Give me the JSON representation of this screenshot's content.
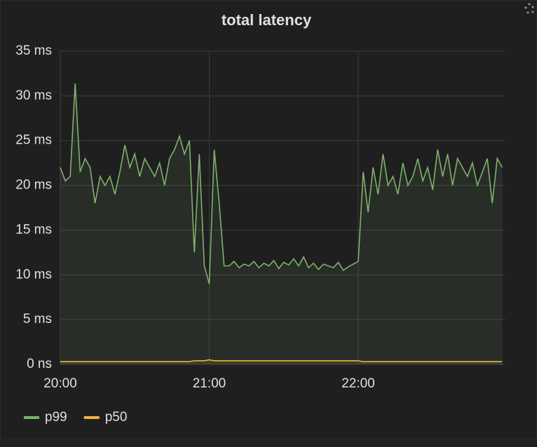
{
  "chart_data": {
    "type": "line",
    "title": "total latency",
    "x": [
      "20:00",
      "20:02",
      "20:04",
      "20:06",
      "20:08",
      "20:10",
      "20:12",
      "20:14",
      "20:16",
      "20:18",
      "20:20",
      "20:22",
      "20:24",
      "20:26",
      "20:28",
      "20:30",
      "20:32",
      "20:34",
      "20:36",
      "20:38",
      "20:40",
      "20:42",
      "20:44",
      "20:46",
      "20:48",
      "20:50",
      "20:52",
      "20:54",
      "20:56",
      "20:58",
      "21:00",
      "21:02",
      "21:04",
      "21:06",
      "21:08",
      "21:10",
      "21:12",
      "21:14",
      "21:16",
      "21:18",
      "21:20",
      "21:22",
      "21:24",
      "21:26",
      "21:28",
      "21:30",
      "21:32",
      "21:34",
      "21:36",
      "21:38",
      "21:40",
      "21:42",
      "21:44",
      "21:46",
      "21:48",
      "21:50",
      "21:52",
      "21:54",
      "21:56",
      "21:58",
      "22:00",
      "22:02",
      "22:04",
      "22:06",
      "22:08",
      "22:10",
      "22:12",
      "22:14",
      "22:16",
      "22:18",
      "22:20",
      "22:22",
      "22:24",
      "22:26",
      "22:28",
      "22:30",
      "22:32",
      "22:34",
      "22:36",
      "22:38",
      "22:40",
      "22:42",
      "22:44",
      "22:46",
      "22:48",
      "22:50",
      "22:52",
      "22:54",
      "22:56",
      "22:58"
    ],
    "series": [
      {
        "name": "p99",
        "color": "#7eb26d",
        "values": [
          22,
          20.5,
          21,
          31.4,
          21.5,
          23,
          22,
          18,
          21,
          20,
          21,
          19,
          21.5,
          24.5,
          22,
          23.5,
          21,
          23,
          22,
          21,
          22.5,
          20,
          23,
          24,
          25.5,
          23.5,
          25,
          12.5,
          23.5,
          11,
          9,
          24,
          18,
          11,
          11,
          11.5,
          10.8,
          11.2,
          11,
          11.5,
          10.8,
          11.3,
          11,
          11.6,
          10.7,
          11.4,
          11.1,
          11.8,
          11,
          12,
          10.8,
          11.3,
          10.6,
          11.2,
          11,
          10.8,
          11.4,
          10.5,
          10.9,
          11.2,
          11.5,
          21.5,
          17,
          22,
          19,
          23.5,
          20,
          21,
          19,
          22.5,
          20,
          21,
          23,
          20.5,
          22,
          19.5,
          24,
          21,
          23.5,
          20,
          23,
          22,
          21,
          22.5,
          20,
          21.5,
          23,
          18,
          23,
          22
        ]
      },
      {
        "name": "p50",
        "color": "#eab839",
        "values": [
          0.3,
          0.3,
          0.3,
          0.3,
          0.3,
          0.3,
          0.3,
          0.3,
          0.3,
          0.3,
          0.3,
          0.3,
          0.3,
          0.3,
          0.3,
          0.3,
          0.3,
          0.3,
          0.3,
          0.3,
          0.3,
          0.3,
          0.3,
          0.3,
          0.3,
          0.3,
          0.3,
          0.4,
          0.4,
          0.4,
          0.5,
          0.4,
          0.4,
          0.4,
          0.4,
          0.4,
          0.4,
          0.4,
          0.4,
          0.4,
          0.4,
          0.4,
          0.4,
          0.4,
          0.4,
          0.4,
          0.4,
          0.4,
          0.4,
          0.4,
          0.4,
          0.4,
          0.4,
          0.4,
          0.4,
          0.4,
          0.4,
          0.4,
          0.4,
          0.4,
          0.4,
          0.3,
          0.3,
          0.3,
          0.3,
          0.3,
          0.3,
          0.3,
          0.3,
          0.3,
          0.3,
          0.3,
          0.3,
          0.3,
          0.3,
          0.3,
          0.3,
          0.3,
          0.3,
          0.3,
          0.3,
          0.3,
          0.3,
          0.3,
          0.3,
          0.3,
          0.3,
          0.3,
          0.3,
          0.3
        ]
      }
    ],
    "xticks": [
      "20:00",
      "21:00",
      "22:00"
    ],
    "ylim": [
      0,
      35
    ],
    "yticks": [
      {
        "value": 0,
        "label": "0 ns"
      },
      {
        "value": 5,
        "label": "5 ms"
      },
      {
        "value": 10,
        "label": "10 ms"
      },
      {
        "value": 15,
        "label": "15 ms"
      },
      {
        "value": 20,
        "label": "20 ms"
      },
      {
        "value": 25,
        "label": "25 ms"
      },
      {
        "value": 30,
        "label": "30 ms"
      },
      {
        "value": 35,
        "label": "35 ms"
      }
    ],
    "grid": true
  }
}
